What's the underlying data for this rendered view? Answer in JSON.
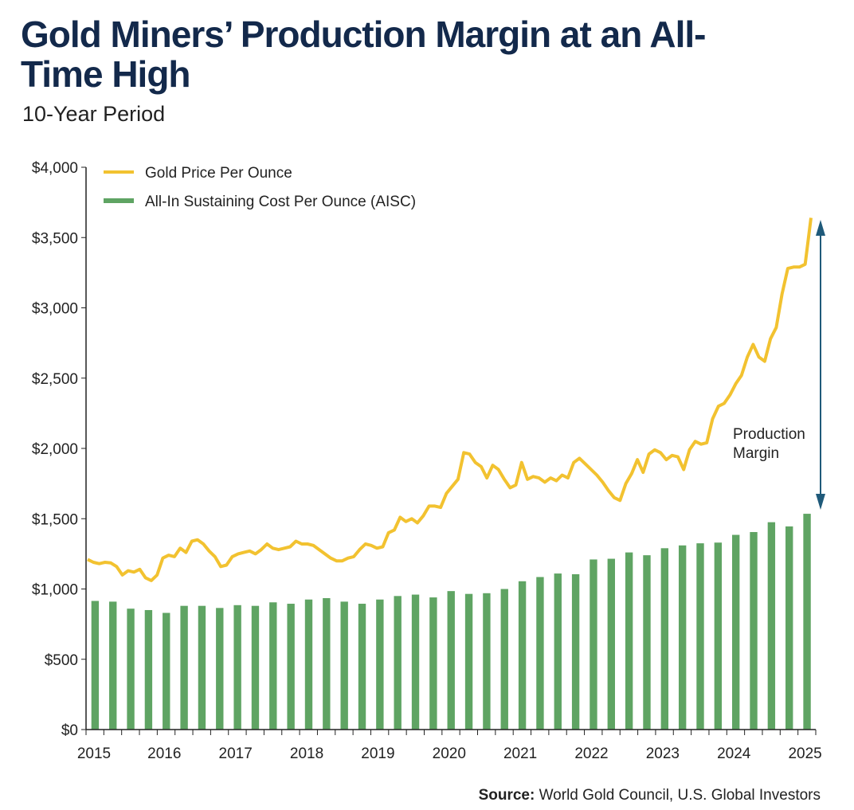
{
  "header": {
    "title": "Gold Miners’ Production Margin at an All-Time High",
    "subtitle": "10-Year Period"
  },
  "footer": {
    "source_label": "Source:",
    "source_text": " World Gold Council, U.S. Global Investors"
  },
  "colors": {
    "gold": "#f2c230",
    "aisc": "#5fa463",
    "arrow": "#1f5a7a"
  },
  "chart_data": {
    "type": "bar+line",
    "title": "Gold Miners’ Production Margin at an All-Time High",
    "ylim": [
      0,
      4000
    ],
    "yticks": [
      "$0",
      "$500",
      "$1,000",
      "$1,500",
      "$2,000",
      "$2,500",
      "$3,000",
      "$3,500",
      "$4,000"
    ],
    "xticks": [
      "2015",
      "2016",
      "2017",
      "2018",
      "2019",
      "2020",
      "2021",
      "2022",
      "2023",
      "2024",
      "2025"
    ],
    "legend": [
      "Gold Price Per Ounce",
      "All-In Sustaining Cost Per Ounce (AISC)"
    ],
    "annotation": [
      "Production",
      "Margin"
    ],
    "aisc_quarterly": [
      915,
      910,
      860,
      850,
      830,
      880,
      880,
      865,
      885,
      880,
      905,
      895,
      925,
      935,
      910,
      895,
      925,
      950,
      960,
      940,
      985,
      965,
      970,
      1000,
      1055,
      1085,
      1110,
      1105,
      1210,
      1215,
      1260,
      1240,
      1290,
      1310,
      1325,
      1330,
      1385,
      1405,
      1475,
      1445,
      1535
    ],
    "gold_monthly": [
      1210,
      1190,
      1180,
      1190,
      1185,
      1160,
      1100,
      1130,
      1120,
      1140,
      1080,
      1060,
      1100,
      1220,
      1240,
      1230,
      1290,
      1260,
      1340,
      1350,
      1320,
      1270,
      1230,
      1160,
      1170,
      1230,
      1250,
      1260,
      1270,
      1250,
      1280,
      1320,
      1290,
      1280,
      1290,
      1300,
      1340,
      1320,
      1320,
      1310,
      1280,
      1250,
      1220,
      1200,
      1200,
      1220,
      1230,
      1280,
      1320,
      1310,
      1290,
      1300,
      1400,
      1420,
      1510,
      1480,
      1500,
      1470,
      1520,
      1590,
      1590,
      1580,
      1680,
      1730,
      1780,
      1970,
      1960,
      1900,
      1870,
      1790,
      1880,
      1850,
      1780,
      1720,
      1740,
      1900,
      1780,
      1800,
      1790,
      1760,
      1790,
      1770,
      1810,
      1790,
      1900,
      1930,
      1890,
      1850,
      1810,
      1760,
      1700,
      1650,
      1630,
      1750,
      1820,
      1920,
      1830,
      1960,
      1990,
      1970,
      1920,
      1950,
      1940,
      1850,
      1990,
      2050,
      2030,
      2040,
      2210,
      2300,
      2320,
      2380,
      2460,
      2520,
      2650,
      2740,
      2650,
      2620,
      2780,
      2860,
      3100,
      3280,
      3290,
      3290,
      3310,
      3640
    ]
  }
}
